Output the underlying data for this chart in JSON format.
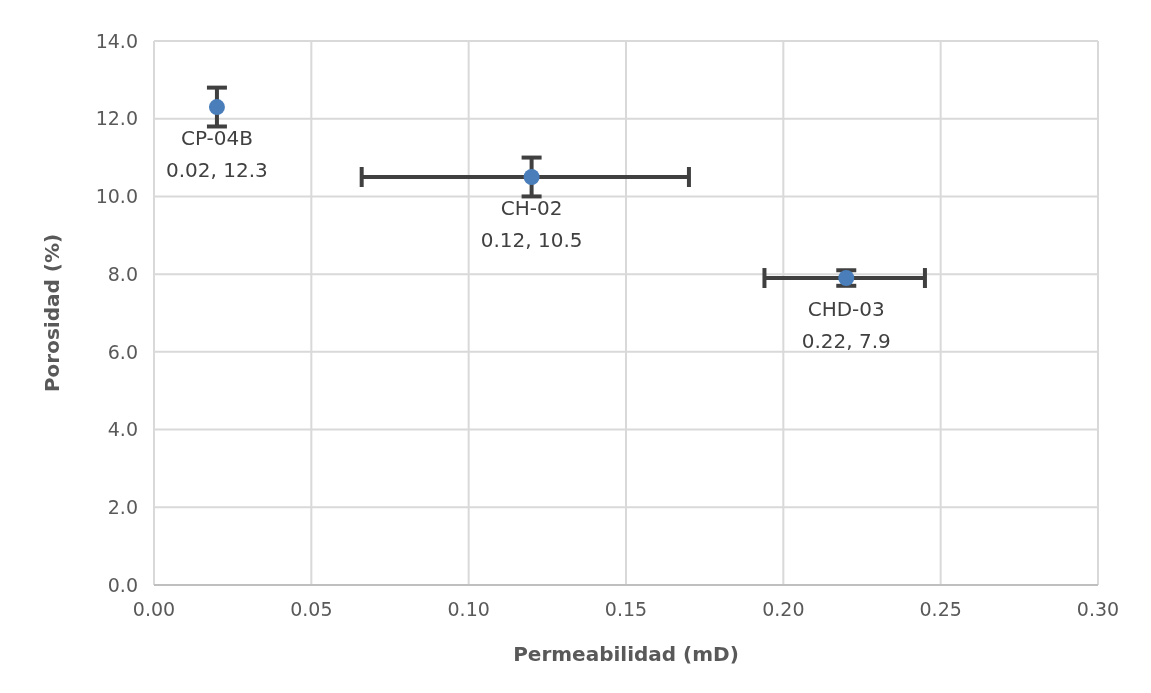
{
  "chart_data": {
    "type": "scatter",
    "xlabel": "Permeabilidad (mD)",
    "ylabel": "Porosidad (%)",
    "x": [
      0.02,
      0.12,
      0.22
    ],
    "values": [
      12.3,
      10.5,
      7.9
    ],
    "errors": [
      0.5,
      0.5,
      0.2
    ],
    "xerrors": [
      null,
      [
        0.066,
        0.17
      ],
      [
        0.194,
        0.245
      ]
    ],
    "value_labels": [
      "CP-04B\n0.02, 12.3",
      "CH-02\n0.12, 10.5",
      "CHD-03\n0.22, 7.9"
    ],
    "color": "#4a7ebb",
    "marker": "circle",
    "xlim": [
      0,
      0.3
    ],
    "xticks": [
      {
        "value": 0,
        "label": "0.00"
      },
      {
        "value": 0.05,
        "label": "0.05"
      },
      {
        "value": 0.1,
        "label": "0.10"
      },
      {
        "value": 0.15,
        "label": "0.15"
      },
      {
        "value": 0.2,
        "label": "0.20"
      },
      {
        "value": 0.25,
        "label": "0.25"
      },
      {
        "value": 0.3,
        "label": "0.30"
      }
    ],
    "ylim": [
      0,
      14
    ],
    "yticks": [
      {
        "value": 0,
        "label": "0.0"
      },
      {
        "value": 2,
        "label": "2.0"
      },
      {
        "value": 4,
        "label": "4.0"
      },
      {
        "value": 6,
        "label": "6.0"
      },
      {
        "value": 8,
        "label": "8.0"
      },
      {
        "value": 10,
        "label": "10.0"
      },
      {
        "value": 12,
        "label": "12.0"
      },
      {
        "value": 14,
        "label": "14.0"
      }
    ],
    "grid": true
  }
}
